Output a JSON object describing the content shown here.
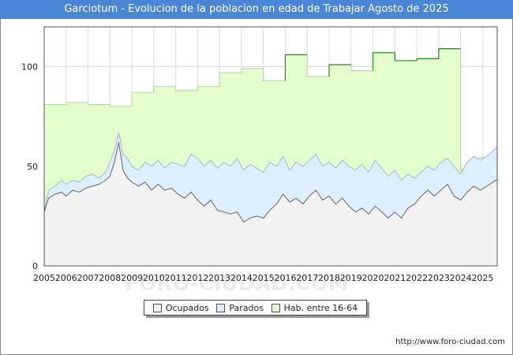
{
  "title": "Garciotum - Evolucion de la poblacion en edad de Trabajar Agosto de 2025",
  "source": "http://www.foro-ciudad.com",
  "watermark": "FORO-CIUDAD.COM",
  "legend": [
    {
      "label": "Ocupados",
      "color": "#f2f2f2"
    },
    {
      "label": "Parados",
      "color": "#ddeeff"
    },
    {
      "label": "Hab. entre 16-64",
      "color": "#e4ffcc"
    }
  ],
  "chart_data": {
    "type": "area",
    "ylim": [
      0,
      120
    ],
    "yticks": [
      0,
      50,
      100
    ],
    "xlim": [
      2005,
      2025.67
    ],
    "xticks": [
      "2005",
      "2006",
      "2007",
      "2008",
      "2009",
      "2010",
      "2011",
      "2012",
      "2013",
      "2014",
      "2015",
      "2016",
      "2017",
      "2018",
      "2019",
      "2020",
      "2021",
      "2022",
      "2023",
      "2024",
      "2025"
    ],
    "grid": true,
    "legend_position": "bottom-center",
    "colors": {
      "hab_fill": "#e4ffcc",
      "hab_line": "#228822",
      "hab_line_light": "#a8d8a0",
      "parados_fill": "#ddeeff",
      "parados_line": "#99b7dd",
      "ocupados_fill": "#f2f2f2",
      "ocupados_line": "#666666"
    },
    "series": [
      {
        "name": "Hab. entre 16-64",
        "points": [
          [
            2005.0,
            81
          ],
          [
            2006.0,
            82
          ],
          [
            2007.0,
            81
          ],
          [
            2008.0,
            80
          ],
          [
            2009.0,
            87
          ],
          [
            2010.0,
            90
          ],
          [
            2011.0,
            88
          ],
          [
            2012.0,
            90
          ],
          [
            2013.0,
            97
          ],
          [
            2014.0,
            99
          ],
          [
            2015.0,
            93
          ],
          [
            2016.0,
            106
          ],
          [
            2017.0,
            95
          ],
          [
            2018.0,
            101
          ],
          [
            2019.0,
            98
          ],
          [
            2020.0,
            107
          ],
          [
            2021.0,
            103
          ],
          [
            2022.0,
            104
          ],
          [
            2023.0,
            109
          ],
          [
            2023.9,
            109
          ],
          [
            2024.0,
            48
          ],
          [
            2024.4,
            50
          ],
          [
            2024.8,
            54
          ],
          [
            2025.3,
            55
          ],
          [
            2025.6,
            58
          ]
        ]
      },
      {
        "name": "Parados",
        "points": [
          [
            2005.0,
            28
          ],
          [
            2005.2,
            38
          ],
          [
            2005.5,
            40
          ],
          [
            2005.8,
            43
          ],
          [
            2006.0,
            41
          ],
          [
            2006.3,
            43
          ],
          [
            2006.6,
            42
          ],
          [
            2006.9,
            45
          ],
          [
            2007.2,
            46
          ],
          [
            2007.5,
            44
          ],
          [
            2007.8,
            47
          ],
          [
            2008.0,
            52
          ],
          [
            2008.2,
            58
          ],
          [
            2008.4,
            67
          ],
          [
            2008.6,
            56
          ],
          [
            2008.8,
            54
          ],
          [
            2009.0,
            50
          ],
          [
            2009.3,
            48
          ],
          [
            2009.6,
            52
          ],
          [
            2009.9,
            50
          ],
          [
            2010.2,
            53
          ],
          [
            2010.5,
            49
          ],
          [
            2010.8,
            52
          ],
          [
            2011.1,
            51
          ],
          [
            2011.4,
            50
          ],
          [
            2011.7,
            56
          ],
          [
            2012.0,
            54
          ],
          [
            2012.3,
            50
          ],
          [
            2012.6,
            53
          ],
          [
            2012.9,
            49
          ],
          [
            2013.2,
            52
          ],
          [
            2013.5,
            50
          ],
          [
            2013.8,
            54
          ],
          [
            2014.1,
            48
          ],
          [
            2014.4,
            51
          ],
          [
            2014.7,
            49
          ],
          [
            2015.0,
            47
          ],
          [
            2015.3,
            52
          ],
          [
            2015.6,
            50
          ],
          [
            2015.9,
            55
          ],
          [
            2016.2,
            48
          ],
          [
            2016.5,
            52
          ],
          [
            2016.8,
            50
          ],
          [
            2017.1,
            53
          ],
          [
            2017.4,
            56
          ],
          [
            2017.7,
            50
          ],
          [
            2018.0,
            52
          ],
          [
            2018.3,
            49
          ],
          [
            2018.6,
            53
          ],
          [
            2018.9,
            50
          ],
          [
            2019.2,
            48
          ],
          [
            2019.5,
            51
          ],
          [
            2019.8,
            47
          ],
          [
            2020.1,
            53
          ],
          [
            2020.4,
            49
          ],
          [
            2020.7,
            45
          ],
          [
            2021.0,
            48
          ],
          [
            2021.3,
            43
          ],
          [
            2021.6,
            46
          ],
          [
            2021.9,
            44
          ],
          [
            2022.2,
            47
          ],
          [
            2022.5,
            50
          ],
          [
            2022.8,
            48
          ],
          [
            2023.1,
            52
          ],
          [
            2023.4,
            54
          ],
          [
            2023.7,
            50
          ],
          [
            2024.0,
            46
          ],
          [
            2024.3,
            52
          ],
          [
            2024.6,
            55
          ],
          [
            2024.9,
            53
          ],
          [
            2025.2,
            55
          ],
          [
            2025.6,
            59
          ]
        ]
      },
      {
        "name": "Ocupados",
        "points": [
          [
            2005.0,
            27
          ],
          [
            2005.2,
            34
          ],
          [
            2005.5,
            36
          ],
          [
            2005.8,
            37
          ],
          [
            2006.0,
            35
          ],
          [
            2006.3,
            38
          ],
          [
            2006.6,
            37
          ],
          [
            2006.9,
            39
          ],
          [
            2007.2,
            40
          ],
          [
            2007.5,
            41
          ],
          [
            2007.8,
            43
          ],
          [
            2008.0,
            45
          ],
          [
            2008.2,
            52
          ],
          [
            2008.4,
            62
          ],
          [
            2008.6,
            48
          ],
          [
            2008.8,
            44
          ],
          [
            2009.0,
            42
          ],
          [
            2009.3,
            40
          ],
          [
            2009.6,
            42
          ],
          [
            2009.9,
            38
          ],
          [
            2010.2,
            41
          ],
          [
            2010.5,
            38
          ],
          [
            2010.8,
            39
          ],
          [
            2011.1,
            36
          ],
          [
            2011.4,
            34
          ],
          [
            2011.7,
            37
          ],
          [
            2012.0,
            33
          ],
          [
            2012.3,
            30
          ],
          [
            2012.6,
            33
          ],
          [
            2012.9,
            28
          ],
          [
            2013.2,
            27
          ],
          [
            2013.5,
            26
          ],
          [
            2013.8,
            27
          ],
          [
            2014.1,
            22
          ],
          [
            2014.4,
            24
          ],
          [
            2014.7,
            25
          ],
          [
            2015.0,
            24
          ],
          [
            2015.3,
            28
          ],
          [
            2015.6,
            31
          ],
          [
            2015.9,
            36
          ],
          [
            2016.2,
            32
          ],
          [
            2016.5,
            34
          ],
          [
            2016.8,
            31
          ],
          [
            2017.1,
            35
          ],
          [
            2017.4,
            38
          ],
          [
            2017.7,
            33
          ],
          [
            2018.0,
            35
          ],
          [
            2018.3,
            31
          ],
          [
            2018.6,
            34
          ],
          [
            2018.9,
            30
          ],
          [
            2019.2,
            27
          ],
          [
            2019.5,
            29
          ],
          [
            2019.8,
            26
          ],
          [
            2020.1,
            30
          ],
          [
            2020.4,
            27
          ],
          [
            2020.7,
            24
          ],
          [
            2021.0,
            27
          ],
          [
            2021.3,
            24
          ],
          [
            2021.6,
            29
          ],
          [
            2021.9,
            31
          ],
          [
            2022.2,
            35
          ],
          [
            2022.5,
            38
          ],
          [
            2022.8,
            35
          ],
          [
            2023.1,
            38
          ],
          [
            2023.4,
            41
          ],
          [
            2023.7,
            35
          ],
          [
            2024.0,
            33
          ],
          [
            2024.3,
            37
          ],
          [
            2024.6,
            40
          ],
          [
            2024.9,
            38
          ],
          [
            2025.2,
            40
          ],
          [
            2025.6,
            43
          ]
        ]
      }
    ]
  }
}
